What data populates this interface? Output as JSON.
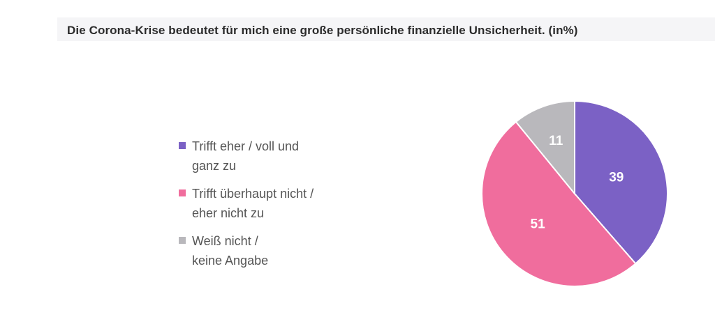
{
  "chart_data": {
    "type": "pie",
    "title": "Die Corona-Krise bedeutet für mich eine große persönliche finanzielle Unsicherheit. (in%)",
    "slices": [
      {
        "label_lines": [
          "Trifft eher / voll und",
          "ganz zu"
        ],
        "value": 39,
        "value_label": "39",
        "color": "#7b61c5"
      },
      {
        "label_lines": [
          "Trifft überhaupt nicht /",
          "eher nicht zu"
        ],
        "value": 51,
        "value_label": "51",
        "color": "#f06d9d"
      },
      {
        "label_lines": [
          "Weiß nicht /",
          "keine Angabe"
        ],
        "value": 11,
        "value_label": "11",
        "color": "#b9b8bc"
      }
    ],
    "start_angle_deg": 0,
    "direction": "clockwise",
    "legend_position": "left"
  }
}
